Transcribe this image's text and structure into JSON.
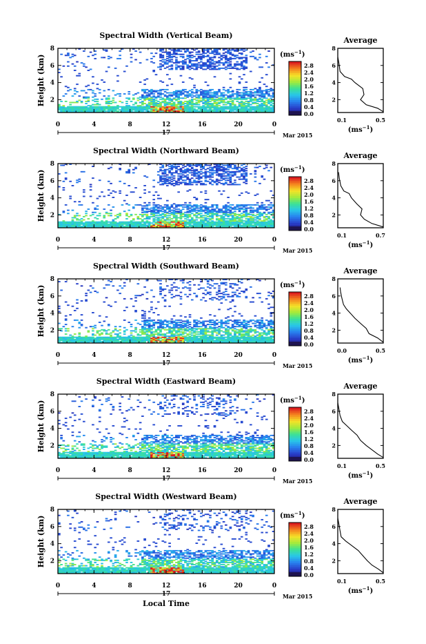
{
  "page": {
    "xlabel": "Local Time",
    "month_label": "Mar 2015",
    "day_label": "17",
    "ylabel": "Height (km)",
    "colorbar_unit": "(ms",
    "unit_exp": "−1",
    "avg_title": "Average",
    "avg_xlabel": "(ms",
    "colorbar_ticks": [
      "2.8",
      "2.4",
      "2.0",
      "1.6",
      "1.2",
      "0.8",
      "0.4",
      "0.0"
    ]
  },
  "chart_data": [
    {
      "type": "heatmap",
      "title": "Spectral Width (Vertical Beam)",
      "xlabel": "Local Time",
      "ylabel": "Height (km)",
      "xlim": [
        0,
        24
      ],
      "ylim": [
        0.5,
        8
      ],
      "xticks": [
        "0",
        "4",
        "8",
        "12",
        "16",
        "20",
        "0"
      ],
      "yticks": [
        "2",
        "4",
        "6",
        "8"
      ],
      "colorbar": {
        "label": "ms-1",
        "min": 0.0,
        "max": 2.8
      },
      "average_profile": {
        "title": "Average",
        "xlabel": "ms-1",
        "xticks": [
          "0.1",
          "0.5"
        ],
        "yticks": [
          "2",
          "4",
          "6",
          "8"
        ],
        "xlim": [
          0.1,
          0.5
        ],
        "ylim": [
          0.5,
          8
        ],
        "profile": [
          [
            0.5,
            0.6
          ],
          [
            0.45,
            1.0
          ],
          [
            0.35,
            1.4
          ],
          [
            0.3,
            2.0
          ],
          [
            0.33,
            2.6
          ],
          [
            0.32,
            3.3
          ],
          [
            0.25,
            4.0
          ],
          [
            0.22,
            4.4
          ],
          [
            0.16,
            4.7
          ],
          [
            0.12,
            5.3
          ],
          [
            0.11,
            6.3
          ],
          [
            0.1,
            7.0
          ]
        ]
      }
    },
    {
      "type": "heatmap",
      "title": "Spectral Width (Northward Beam)",
      "xlabel": "Local Time",
      "ylabel": "Height (km)",
      "xlim": [
        0,
        24
      ],
      "ylim": [
        0.5,
        8
      ],
      "xticks": [
        "0",
        "4",
        "8",
        "12",
        "16",
        "20",
        "0"
      ],
      "yticks": [
        "2",
        "4",
        "6",
        "8"
      ],
      "colorbar": {
        "label": "ms-1",
        "min": 0.0,
        "max": 2.8
      },
      "average_profile": {
        "title": "Average",
        "xlabel": "ms-1",
        "xticks": [
          "0.1",
          "0.7"
        ],
        "yticks": [
          "2",
          "4",
          "6",
          "8"
        ],
        "xlim": [
          0.1,
          0.7
        ],
        "ylim": [
          0.5,
          8
        ],
        "profile": [
          [
            0.7,
            0.6
          ],
          [
            0.55,
            1.0
          ],
          [
            0.45,
            1.5
          ],
          [
            0.4,
            2.0
          ],
          [
            0.42,
            2.7
          ],
          [
            0.35,
            3.3
          ],
          [
            0.28,
            4.0
          ],
          [
            0.25,
            4.5
          ],
          [
            0.18,
            4.8
          ],
          [
            0.14,
            5.4
          ],
          [
            0.12,
            6.3
          ],
          [
            0.11,
            7.0
          ]
        ]
      }
    },
    {
      "type": "heatmap",
      "title": "Spectral Width (Southward Beam)",
      "xlabel": "Local Time",
      "ylabel": "Height (km)",
      "xlim": [
        0,
        24
      ],
      "ylim": [
        0.5,
        8
      ],
      "xticks": [
        "0",
        "4",
        "8",
        "12",
        "16",
        "20",
        "0"
      ],
      "yticks": [
        "2",
        "4",
        "6",
        "8"
      ],
      "colorbar": {
        "label": "ms-1",
        "min": 0.0,
        "max": 2.8
      },
      "average_profile": {
        "title": "Average",
        "xlabel": "ms-1",
        "xticks": [
          "0.0",
          "0.5"
        ],
        "yticks": [
          "2",
          "4",
          "6",
          "8"
        ],
        "xlim": [
          0.0,
          0.8
        ],
        "ylim": [
          0.5,
          8
        ],
        "profile": [
          [
            0.8,
            0.6
          ],
          [
            0.7,
            1.1
          ],
          [
            0.55,
            1.6
          ],
          [
            0.5,
            2.2
          ],
          [
            0.4,
            2.8
          ],
          [
            0.3,
            3.4
          ],
          [
            0.22,
            4.0
          ],
          [
            0.15,
            4.5
          ],
          [
            0.1,
            5.0
          ],
          [
            0.07,
            5.8
          ],
          [
            0.05,
            6.5
          ],
          [
            0.04,
            7.0
          ]
        ]
      }
    },
    {
      "type": "heatmap",
      "title": "Spectral Width (Eastward Beam)",
      "xlabel": "Local Time",
      "ylabel": "Height (km)",
      "xlim": [
        0,
        24
      ],
      "ylim": [
        0.5,
        8
      ],
      "xticks": [
        "0",
        "4",
        "8",
        "12",
        "16",
        "20",
        "0"
      ],
      "yticks": [
        "2",
        "4",
        "6",
        "8"
      ],
      "colorbar": {
        "label": "ms-1",
        "min": 0.0,
        "max": 2.8
      },
      "average_profile": {
        "title": "Average",
        "xlabel": "ms-1",
        "xticks": [
          "0.1",
          "0.5"
        ],
        "yticks": [
          "2",
          "4",
          "6",
          "8"
        ],
        "xlim": [
          0.1,
          0.5
        ],
        "ylim": [
          0.5,
          8
        ],
        "profile": [
          [
            0.5,
            0.6
          ],
          [
            0.45,
            1.0
          ],
          [
            0.4,
            1.5
          ],
          [
            0.35,
            2.0
          ],
          [
            0.3,
            2.6
          ],
          [
            0.27,
            3.2
          ],
          [
            0.22,
            3.8
          ],
          [
            0.18,
            4.3
          ],
          [
            0.14,
            4.8
          ],
          [
            0.12,
            5.5
          ],
          [
            0.11,
            6.3
          ],
          [
            0.1,
            7.0
          ]
        ]
      }
    },
    {
      "type": "heatmap",
      "title": "Spectral Width (Westward Beam)",
      "xlabel": "Local Time",
      "ylabel": "Height (km)",
      "xlim": [
        0,
        24
      ],
      "ylim": [
        0.5,
        8
      ],
      "xticks": [
        "0",
        "4",
        "8",
        "12",
        "16",
        "20",
        "0"
      ],
      "yticks": [
        "2",
        "4",
        "6",
        "8"
      ],
      "colorbar": {
        "label": "ms-1",
        "min": 0.0,
        "max": 2.8
      },
      "average_profile": {
        "title": "Average",
        "xlabel": "ms-1",
        "xticks": [
          "0.1",
          "0.5"
        ],
        "yticks": [
          "2",
          "4",
          "6",
          "8"
        ],
        "xlim": [
          0.1,
          0.5
        ],
        "ylim": [
          0.5,
          8
        ],
        "profile": [
          [
            0.5,
            0.6
          ],
          [
            0.46,
            1.0
          ],
          [
            0.4,
            1.5
          ],
          [
            0.36,
            2.0
          ],
          [
            0.32,
            2.6
          ],
          [
            0.28,
            3.2
          ],
          [
            0.22,
            3.8
          ],
          [
            0.17,
            4.3
          ],
          [
            0.13,
            4.8
          ],
          [
            0.12,
            5.5
          ],
          [
            0.11,
            6.3
          ],
          [
            0.1,
            7.0
          ]
        ]
      }
    }
  ]
}
